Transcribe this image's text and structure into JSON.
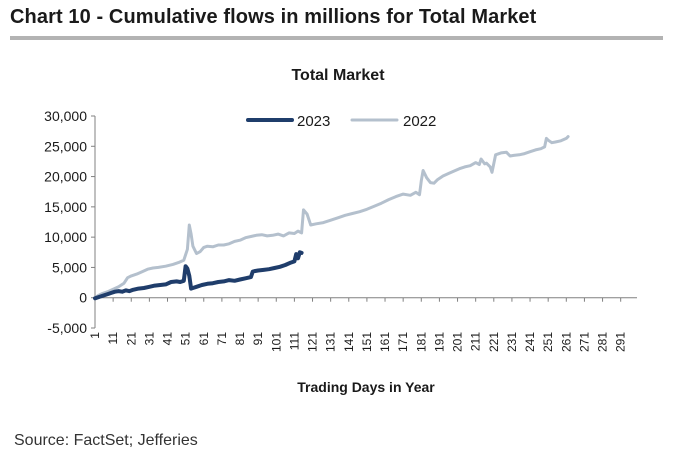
{
  "header": {
    "title": "Chart 10 - Cumulative flows in millions for Total Market"
  },
  "footer": {
    "source": "Source: FactSet; Jefferies"
  },
  "colors": {
    "series_2023": "#1f3d6b",
    "series_2022": "#b4c0cd",
    "axis": "#808080",
    "rule": "#b3b3b3"
  },
  "chart_data": {
    "type": "line",
    "title": "Total Market",
    "xlabel": "Trading Days in Year",
    "ylabel": "",
    "ylim": [
      -5000,
      30000
    ],
    "yticks": [
      -5000,
      0,
      5000,
      10000,
      15000,
      20000,
      25000,
      30000
    ],
    "ytick_labels": [
      "-5,000",
      "0",
      "5,000",
      "10,000",
      "15,000",
      "20,000",
      "25,000",
      "30,000"
    ],
    "xlim": [
      1,
      300
    ],
    "xticks": [
      1,
      11,
      21,
      31,
      41,
      51,
      61,
      71,
      81,
      91,
      101,
      111,
      121,
      131,
      141,
      151,
      161,
      171,
      181,
      191,
      201,
      211,
      221,
      231,
      241,
      251,
      261,
      271,
      281,
      291
    ],
    "legend_position": "top-center",
    "series": [
      {
        "name": "2023",
        "color": "#1f3d6b",
        "x": [
          1,
          3,
          5,
          8,
          10,
          12,
          14,
          16,
          18,
          20,
          22,
          25,
          28,
          31,
          34,
          37,
          40,
          43,
          46,
          48,
          50,
          51,
          52,
          53,
          54,
          55,
          57,
          60,
          63,
          66,
          69,
          72,
          75,
          78,
          81,
          84,
          87,
          88,
          89,
          91,
          94,
          97,
          100,
          103,
          106,
          109,
          111,
          112,
          113,
          114,
          115
        ],
        "y": [
          -100,
          100,
          300,
          600,
          800,
          1000,
          1100,
          1000,
          1200,
          1100,
          1300,
          1500,
          1600,
          1800,
          2000,
          2100,
          2200,
          2600,
          2700,
          2600,
          2800,
          5200,
          4800,
          3600,
          1500,
          1600,
          1800,
          2100,
          2300,
          2400,
          2600,
          2700,
          2900,
          2800,
          3000,
          3200,
          3400,
          4300,
          4400,
          4500,
          4600,
          4700,
          4900,
          5100,
          5400,
          5800,
          6000,
          7200,
          6500,
          7500,
          7400
        ]
      },
      {
        "name": "2022",
        "color": "#b4c0cd",
        "x": [
          1,
          3,
          5,
          8,
          11,
          14,
          17,
          19,
          21,
          24,
          27,
          30,
          33,
          36,
          40,
          44,
          47,
          50,
          52,
          53,
          54,
          55,
          57,
          59,
          61,
          63,
          66,
          69,
          72,
          75,
          78,
          81,
          84,
          87,
          90,
          93,
          96,
          99,
          102,
          105,
          108,
          111,
          113,
          115,
          116,
          118,
          120,
          123,
          127,
          131,
          135,
          139,
          143,
          147,
          151,
          155,
          159,
          163,
          167,
          171,
          175,
          178,
          180,
          181,
          182,
          184,
          186,
          188,
          190,
          193,
          196,
          199,
          202,
          205,
          208,
          211,
          213,
          214,
          216,
          217,
          219,
          220,
          222,
          225,
          228,
          230,
          232,
          235,
          238,
          241,
          244,
          247,
          249,
          250,
          251,
          253,
          255,
          258,
          261,
          262
        ],
        "y": [
          0,
          400,
          700,
          1000,
          1400,
          1800,
          2400,
          3300,
          3600,
          3900,
          4300,
          4700,
          4900,
          5000,
          5200,
          5500,
          5800,
          6200,
          8000,
          12000,
          10500,
          8500,
          7300,
          7600,
          8300,
          8500,
          8400,
          8700,
          8700,
          8900,
          9300,
          9500,
          9900,
          10100,
          10300,
          10400,
          10200,
          10300,
          10500,
          10200,
          10700,
          10600,
          11000,
          10700,
          14500,
          13800,
          12000,
          12200,
          12400,
          12800,
          13200,
          13600,
          13900,
          14200,
          14600,
          15100,
          15600,
          16200,
          16700,
          17100,
          16900,
          17400,
          17000,
          19300,
          21000,
          19800,
          19000,
          18900,
          19500,
          20100,
          20500,
          20900,
          21300,
          21600,
          21800,
          22300,
          22000,
          22900,
          22100,
          22200,
          21600,
          20700,
          23600,
          23900,
          24000,
          23400,
          23500,
          23600,
          23800,
          24100,
          24400,
          24600,
          24900,
          26300,
          26000,
          25600,
          25700,
          25900,
          26300,
          26600
        ]
      }
    ]
  }
}
